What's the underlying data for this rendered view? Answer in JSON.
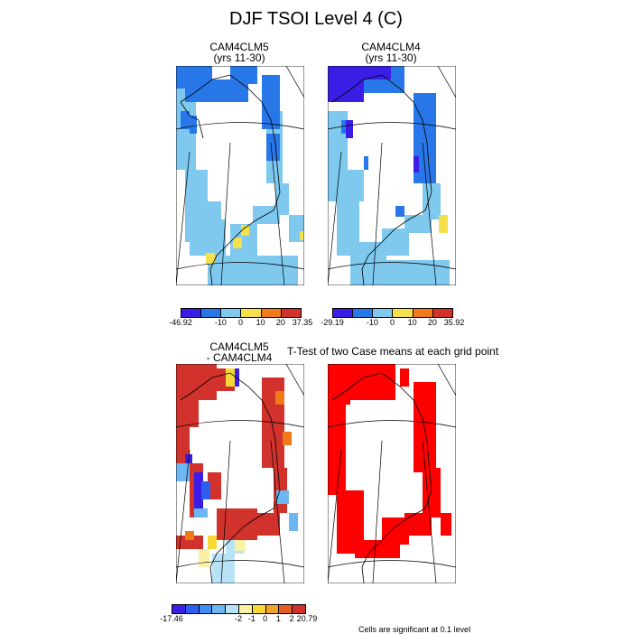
{
  "title": "DJF TSOI Level 4 (C)",
  "panels": [
    {
      "name": "panel-cam4clm5",
      "line1": "CAM4CLM5",
      "line2": "(yrs 11-30)"
    },
    {
      "name": "panel-cam4clm4",
      "line1": "CAM4CLM4",
      "line2": "(yrs 11-30)"
    },
    {
      "name": "panel-diff",
      "line1": "CAM4CLM5",
      "line2": "- CAM4CLM4"
    },
    {
      "name": "panel-ttest",
      "line1": "T-Test of two Case means at each grid point",
      "line2": ""
    }
  ],
  "colorbars": [
    {
      "name": "colorbar-cam4clm5",
      "colors": [
        "#3b1ee6",
        "#2877e8",
        "#7fc8ee",
        "#f4e04a",
        "#f07a1a",
        "#d1322c"
      ],
      "labels": [
        "-46.92",
        "-10",
        "0",
        "10",
        "20",
        "37.35"
      ]
    },
    {
      "name": "colorbar-cam4clm4",
      "colors": [
        "#3b1ee6",
        "#2877e8",
        "#7fc8ee",
        "#f4e04a",
        "#f07a1a",
        "#d1322c"
      ],
      "labels": [
        "-29.19",
        "-10",
        "0",
        "10",
        "20",
        "35.92"
      ]
    },
    {
      "name": "colorbar-diff",
      "colors": [
        "#3b1ee6",
        "#2e5ef0",
        "#3e8df5",
        "#6cb7f1",
        "#b8e2f6",
        "#f9f2a5",
        "#f7d834",
        "#f0a22a",
        "#e85d20",
        "#d1322c"
      ],
      "labels": [
        "-17.46",
        "-2",
        "-1",
        "0",
        "1",
        "2",
        "20.79"
      ]
    }
  ],
  "note": "Cells are significant at 0.1 level",
  "colors": {
    "ttest_fill": "#ff0000",
    "coast": "#000000"
  }
}
